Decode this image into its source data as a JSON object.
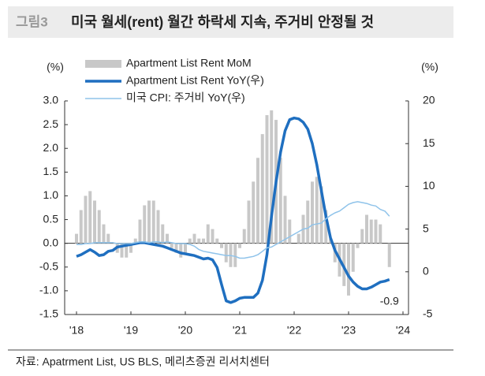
{
  "header": {
    "label": "그림3",
    "title": "미국 월세(rent) 월간 하락세 지속, 주거비 안정될 것"
  },
  "source": "자료: Apatrment List, US BLS, 메리츠증권 리서치센터",
  "chart_data": {
    "type": "bar-line",
    "ylabel": "(%)",
    "y2label": "(%)",
    "categories": [
      "'18",
      null,
      null,
      null,
      null,
      null,
      null,
      null,
      null,
      null,
      null,
      null,
      "'19",
      null,
      null,
      null,
      null,
      null,
      null,
      null,
      null,
      null,
      null,
      null,
      "'20",
      null,
      null,
      null,
      null,
      null,
      null,
      null,
      null,
      null,
      null,
      null,
      "'21",
      null,
      null,
      null,
      null,
      null,
      null,
      null,
      null,
      null,
      null,
      null,
      "'22",
      null,
      null,
      null,
      null,
      null,
      null,
      null,
      null,
      null,
      null,
      null,
      "'23",
      null,
      null,
      null,
      null,
      null,
      null,
      null,
      null,
      null,
      null,
      null,
      "'24"
    ],
    "ylim": [
      -1.5,
      3.0
    ],
    "yticks": [
      {
        "value": 3,
        "label": "3.0"
      },
      {
        "value": 2.5,
        "label": "2.5"
      },
      {
        "value": 2,
        "label": "2.0"
      },
      {
        "value": 1.5,
        "label": "1.5"
      },
      {
        "value": 1,
        "label": "1.0"
      },
      {
        "value": 0.5,
        "label": "0.5"
      },
      {
        "value": 0,
        "label": "0.0"
      },
      {
        "value": -0.5,
        "label": "-0.5"
      },
      {
        "value": -1,
        "label": "-1.0"
      },
      {
        "value": -1.5,
        "label": "-1.5"
      }
    ],
    "y2lim": [
      -5,
      20
    ],
    "y2ticks": [
      20,
      15,
      10,
      5,
      0,
      -5
    ],
    "legend": "upper left",
    "series": [
      {
        "name": "Apartment List Rent MoM",
        "type": "bar",
        "color": "#c8c8c8",
        "values": [
          0.2,
          0.7,
          1.0,
          1.1,
          0.9,
          0.7,
          0.4,
          0.2,
          0.0,
          -0.2,
          -0.3,
          -0.3,
          -0.2,
          0.1,
          0.5,
          0.8,
          0.9,
          0.9,
          0.7,
          0.4,
          0.2,
          -0.1,
          -0.2,
          -0.3,
          -0.2,
          0.1,
          0.2,
          0.1,
          0.1,
          0.4,
          0.3,
          0.1,
          -0.1,
          -0.4,
          -0.5,
          -0.5,
          -0.1,
          0.3,
          0.9,
          1.3,
          1.8,
          2.3,
          2.7,
          2.8,
          2.6,
          1.8,
          1.0,
          0.5,
          0.0,
          0.2,
          0.6,
          0.9,
          1.3,
          1.4,
          1.2,
          0.7,
          0.1,
          -0.4,
          -0.7,
          -0.9,
          -1.1,
          -0.6,
          -0.1,
          0.3,
          0.6,
          0.5,
          0.5,
          0.4,
          0.0,
          -0.5,
          null,
          null,
          null
        ]
      },
      {
        "name": "Apartment List Rent YoY(우)",
        "type": "line",
        "axis": "y2",
        "color": "#1f6fc0",
        "width": 3.5,
        "label_last": true,
        "values": [
          1.8,
          2.0,
          2.3,
          2.6,
          2.3,
          1.9,
          2.0,
          2.4,
          2.5,
          2.9,
          3.0,
          3.1,
          3.2,
          3.3,
          3.4,
          3.4,
          3.3,
          3.2,
          3.1,
          3.0,
          2.8,
          2.6,
          2.4,
          2.2,
          2.1,
          2.0,
          1.9,
          1.7,
          1.5,
          1.6,
          1.4,
          0.5,
          -1.5,
          -3.4,
          -3.6,
          -3.4,
          -3.1,
          -3.0,
          -3.0,
          -3.0,
          -2.5,
          -1.0,
          2.0,
          6.5,
          10.5,
          14.0,
          16.5,
          17.8,
          18.0,
          17.9,
          17.5,
          16.7,
          15.0,
          12.5,
          9.5,
          6.5,
          4.0,
          2.5,
          1.5,
          0.5,
          -0.5,
          -1.2,
          -1.7,
          -2.0,
          -2.0,
          -1.8,
          -1.5,
          -1.2,
          -1.1,
          -0.9,
          null,
          null,
          null
        ]
      },
      {
        "name": "미국 CPI: 주거비 YoY(우)",
        "type": "line",
        "axis": "y2",
        "color": "#8fc3ea",
        "width": 1.5,
        "values": [
          3.2,
          3.2,
          3.3,
          3.3,
          3.4,
          3.4,
          3.4,
          3.4,
          3.4,
          3.3,
          3.3,
          3.3,
          3.3,
          3.4,
          3.5,
          3.5,
          3.4,
          3.5,
          3.5,
          3.4,
          3.5,
          3.4,
          3.3,
          3.3,
          3.3,
          3.2,
          3.0,
          2.6,
          2.4,
          2.3,
          2.2,
          2.1,
          2.0,
          1.9,
          1.9,
          1.8,
          1.6,
          1.6,
          1.7,
          1.8,
          2.0,
          2.4,
          2.8,
          2.9,
          3.2,
          3.5,
          3.8,
          4.1,
          4.4,
          4.7,
          5.0,
          5.1,
          5.5,
          5.6,
          5.7,
          6.2,
          6.6,
          6.9,
          7.1,
          7.5,
          7.9,
          8.1,
          8.2,
          8.1,
          8.0,
          7.8,
          7.7,
          7.3,
          7.1,
          6.5,
          null,
          null,
          null
        ]
      }
    ]
  }
}
